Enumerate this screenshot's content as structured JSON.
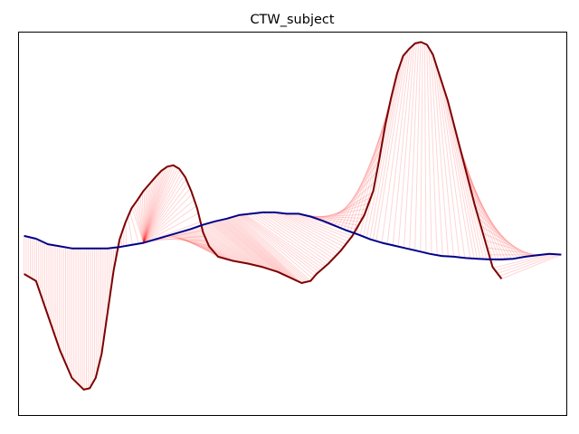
{
  "chart_data": {
    "type": "line",
    "title": "CTW_subject",
    "xlabel": "",
    "ylabel": "",
    "xlim": [
      -2,
      182
    ],
    "ylim": [
      -2.5,
      3.05
    ],
    "grid": false,
    "axis_ticks": false,
    "series": [
      {
        "color": "#7f0000",
        "values": [
          [
            0,
            -0.45
          ],
          [
            4,
            -0.55
          ],
          [
            8,
            -1.05
          ],
          [
            12,
            -1.55
          ],
          [
            16,
            -1.95
          ],
          [
            20,
            -2.12
          ],
          [
            22,
            -2.1
          ],
          [
            24,
            -1.95
          ],
          [
            26,
            -1.6
          ],
          [
            28,
            -1.0
          ],
          [
            30,
            -0.4
          ],
          [
            32,
            0.05
          ],
          [
            34,
            0.3
          ],
          [
            36,
            0.5
          ],
          [
            38,
            0.62
          ],
          [
            40,
            0.75
          ],
          [
            42,
            0.85
          ],
          [
            44,
            0.95
          ],
          [
            46,
            1.04
          ],
          [
            48,
            1.1
          ],
          [
            50,
            1.12
          ],
          [
            52,
            1.07
          ],
          [
            54,
            0.95
          ],
          [
            56,
            0.75
          ],
          [
            58,
            0.5
          ],
          [
            60,
            0.15
          ],
          [
            62,
            -0.05
          ],
          [
            65,
            -0.2
          ],
          [
            70,
            -0.26
          ],
          [
            75,
            -0.3
          ],
          [
            80,
            -0.35
          ],
          [
            85,
            -0.42
          ],
          [
            89,
            -0.5
          ],
          [
            93,
            -0.58
          ],
          [
            96,
            -0.55
          ],
          [
            98,
            -0.45
          ],
          [
            102,
            -0.3
          ],
          [
            106,
            -0.12
          ],
          [
            110,
            0.1
          ],
          [
            114,
            0.4
          ],
          [
            117,
            0.75
          ],
          [
            119,
            1.2
          ],
          [
            121,
            1.7
          ],
          [
            123,
            2.1
          ],
          [
            125,
            2.45
          ],
          [
            127,
            2.7
          ],
          [
            129,
            2.8
          ],
          [
            131,
            2.88
          ],
          [
            133,
            2.9
          ],
          [
            135,
            2.86
          ],
          [
            137,
            2.72
          ],
          [
            139,
            2.45
          ],
          [
            142,
            2.05
          ],
          [
            145,
            1.55
          ],
          [
            148,
            1.05
          ],
          [
            151,
            0.55
          ],
          [
            154,
            0.1
          ],
          [
            157,
            -0.35
          ],
          [
            160,
            -0.52
          ]
        ]
      },
      {
        "color": "#00008b",
        "values": [
          [
            0,
            0.1
          ],
          [
            4,
            0.06
          ],
          [
            8,
            -0.02
          ],
          [
            12,
            -0.05
          ],
          [
            16,
            -0.08
          ],
          [
            20,
            -0.08
          ],
          [
            24,
            -0.08
          ],
          [
            28,
            -0.08
          ],
          [
            32,
            -0.06
          ],
          [
            36,
            -0.03
          ],
          [
            40,
            0.0
          ],
          [
            44,
            0.05
          ],
          [
            48,
            0.1
          ],
          [
            52,
            0.15
          ],
          [
            56,
            0.2
          ],
          [
            60,
            0.26
          ],
          [
            64,
            0.31
          ],
          [
            68,
            0.35
          ],
          [
            72,
            0.4
          ],
          [
            76,
            0.42
          ],
          [
            80,
            0.44
          ],
          [
            84,
            0.44
          ],
          [
            88,
            0.42
          ],
          [
            92,
            0.42
          ],
          [
            96,
            0.38
          ],
          [
            100,
            0.32
          ],
          [
            104,
            0.25
          ],
          [
            108,
            0.18
          ],
          [
            112,
            0.12
          ],
          [
            116,
            0.05
          ],
          [
            120,
            0.0
          ],
          [
            124,
            -0.04
          ],
          [
            128,
            -0.08
          ],
          [
            132,
            -0.12
          ],
          [
            136,
            -0.16
          ],
          [
            140,
            -0.19
          ],
          [
            144,
            -0.2
          ],
          [
            148,
            -0.22
          ],
          [
            152,
            -0.23
          ],
          [
            156,
            -0.24
          ],
          [
            160,
            -0.24
          ],
          [
            164,
            -0.23
          ],
          [
            168,
            -0.2
          ],
          [
            172,
            -0.18
          ],
          [
            176,
            -0.16
          ],
          [
            180,
            -0.17
          ]
        ]
      }
    ],
    "alignment_color": "#ff0000"
  }
}
